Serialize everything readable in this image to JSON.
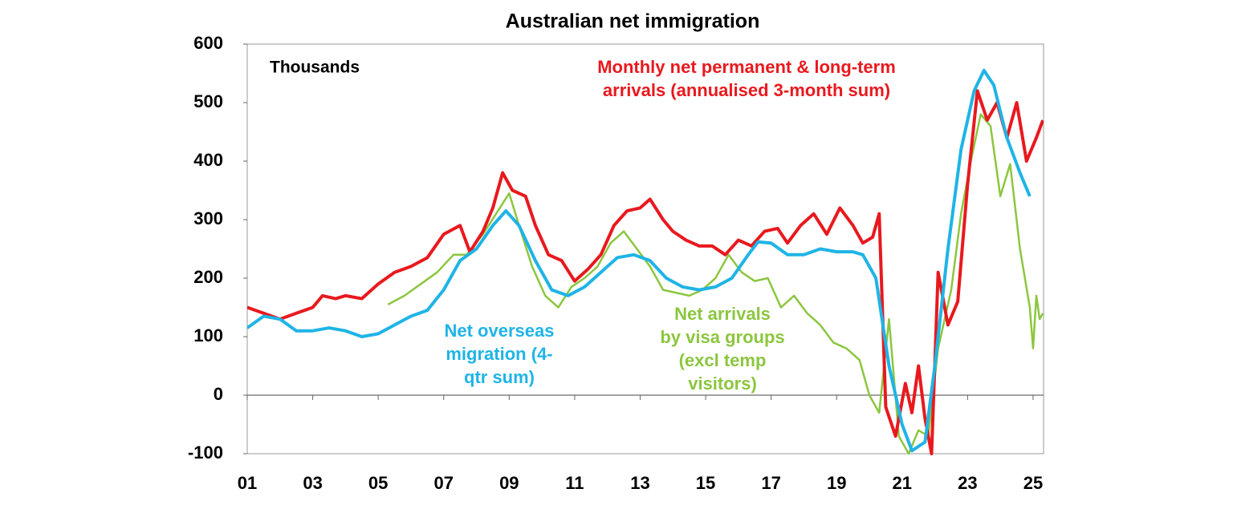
{
  "chart_data": {
    "type": "line",
    "title": "Australian net immigration",
    "unit_label": "Thousands",
    "xlim": [
      1,
      25.32
    ],
    "ylim": [
      -100,
      600
    ],
    "xticks": [
      {
        "value": 1,
        "label": "01"
      },
      {
        "value": 3,
        "label": "03"
      },
      {
        "value": 5,
        "label": "05"
      },
      {
        "value": 7,
        "label": "07"
      },
      {
        "value": 9,
        "label": "09"
      },
      11,
      13,
      15,
      17,
      19,
      21,
      23,
      25
    ],
    "yticks": [
      -100,
      0,
      100,
      200,
      300,
      400,
      500,
      600
    ],
    "zero_line": true,
    "series": [
      {
        "color": "#e8191e",
        "width": 4,
        "label_lines": [
          "Monthly net permanent & long-term",
          "arrivals (annualised 3-month sum)"
        ],
        "x": [
          1,
          1.5,
          2,
          2.5,
          3,
          3.3,
          3.7,
          4,
          4.5,
          5,
          5.5,
          6,
          6.5,
          7,
          7.5,
          7.8,
          8.2,
          8.5,
          8.8,
          9.1,
          9.5,
          9.8,
          10.2,
          10.6,
          11,
          11.4,
          11.8,
          12.2,
          12.6,
          13,
          13.3,
          13.7,
          14,
          14.4,
          14.8,
          15.2,
          15.6,
          16,
          16.4,
          16.8,
          17.2,
          17.5,
          17.9,
          18.3,
          18.7,
          19.1,
          19.5,
          19.8,
          20.1,
          20.3,
          20.5,
          20.8,
          21.1,
          21.3,
          21.5,
          21.7,
          21.9,
          22.1,
          22.4,
          22.7,
          23,
          23.3,
          23.6,
          23.9,
          24.2,
          24.5,
          24.8,
          25.1,
          25.3
        ],
        "values": [
          150,
          140,
          130,
          140,
          150,
          170,
          165,
          170,
          165,
          190,
          210,
          220,
          235,
          275,
          290,
          245,
          280,
          320,
          380,
          350,
          340,
          290,
          240,
          230,
          195,
          215,
          240,
          290,
          315,
          320,
          335,
          300,
          280,
          265,
          255,
          255,
          240,
          265,
          255,
          280,
          285,
          260,
          290,
          310,
          275,
          320,
          290,
          260,
          270,
          310,
          -20,
          -70,
          20,
          -30,
          50,
          -40,
          -100,
          210,
          120,
          160,
          360,
          520,
          470,
          500,
          440,
          500,
          400,
          440,
          470
        ]
      },
      {
        "color": "#1fb4e6",
        "width": 4,
        "label_lines": [
          "Net overseas",
          "migration (4-",
          "qtr sum)"
        ],
        "x": [
          1,
          1.5,
          2,
          2.5,
          3,
          3.5,
          4,
          4.5,
          5,
          5.5,
          6,
          6.5,
          7,
          7.5,
          8,
          8.5,
          8.9,
          9.3,
          9.8,
          10.3,
          10.8,
          11.3,
          11.8,
          12.3,
          12.8,
          13.3,
          13.8,
          14.3,
          14.8,
          15.3,
          15.8,
          16.3,
          16.6,
          17,
          17.5,
          18,
          18.5,
          19,
          19.5,
          19.8,
          20.2,
          20.6,
          21,
          21.3,
          21.7,
          22,
          22.4,
          22.8,
          23.2,
          23.5,
          23.8,
          24.2,
          24.6,
          24.9
        ],
        "values": [
          115,
          135,
          130,
          110,
          110,
          115,
          110,
          100,
          105,
          120,
          135,
          145,
          180,
          230,
          250,
          290,
          315,
          290,
          230,
          180,
          170,
          185,
          210,
          235,
          240,
          230,
          200,
          185,
          180,
          185,
          200,
          240,
          262,
          260,
          240,
          240,
          250,
          245,
          245,
          240,
          200,
          50,
          -50,
          -95,
          -80,
          50,
          250,
          420,
          520,
          555,
          530,
          440,
          380,
          340
        ]
      },
      {
        "color": "#8cc63f",
        "width": 2.5,
        "label_lines": [
          "Net arrivals",
          "by visa groups",
          "(excl temp",
          "visitors)"
        ],
        "x": [
          5.3,
          5.8,
          6.3,
          6.8,
          7.3,
          7.7,
          8.2,
          8.6,
          9,
          9.3,
          9.7,
          10.1,
          10.5,
          10.9,
          11.3,
          11.7,
          12.1,
          12.5,
          12.9,
          13.3,
          13.7,
          14.1,
          14.5,
          14.9,
          15.3,
          15.7,
          16.1,
          16.5,
          16.9,
          17.3,
          17.7,
          18.1,
          18.5,
          18.9,
          19.3,
          19.7,
          20,
          20.3,
          20.6,
          20.9,
          21.2,
          21.5,
          21.8,
          22.1,
          22.5,
          22.8,
          23.1,
          23.4,
          23.7,
          24,
          24.3,
          24.6,
          24.9,
          25,
          25.1,
          25.2,
          25.3
        ],
        "values": [
          155,
          170,
          190,
          210,
          240,
          240,
          275,
          310,
          345,
          290,
          220,
          170,
          150,
          185,
          200,
          220,
          260,
          280,
          250,
          220,
          180,
          175,
          170,
          180,
          200,
          240,
          210,
          195,
          200,
          150,
          170,
          140,
          120,
          90,
          80,
          60,
          0,
          -30,
          130,
          -70,
          -100,
          -60,
          -70,
          80,
          180,
          310,
          400,
          480,
          460,
          340,
          395,
          250,
          150,
          80,
          170,
          130,
          140
        ]
      }
    ]
  }
}
